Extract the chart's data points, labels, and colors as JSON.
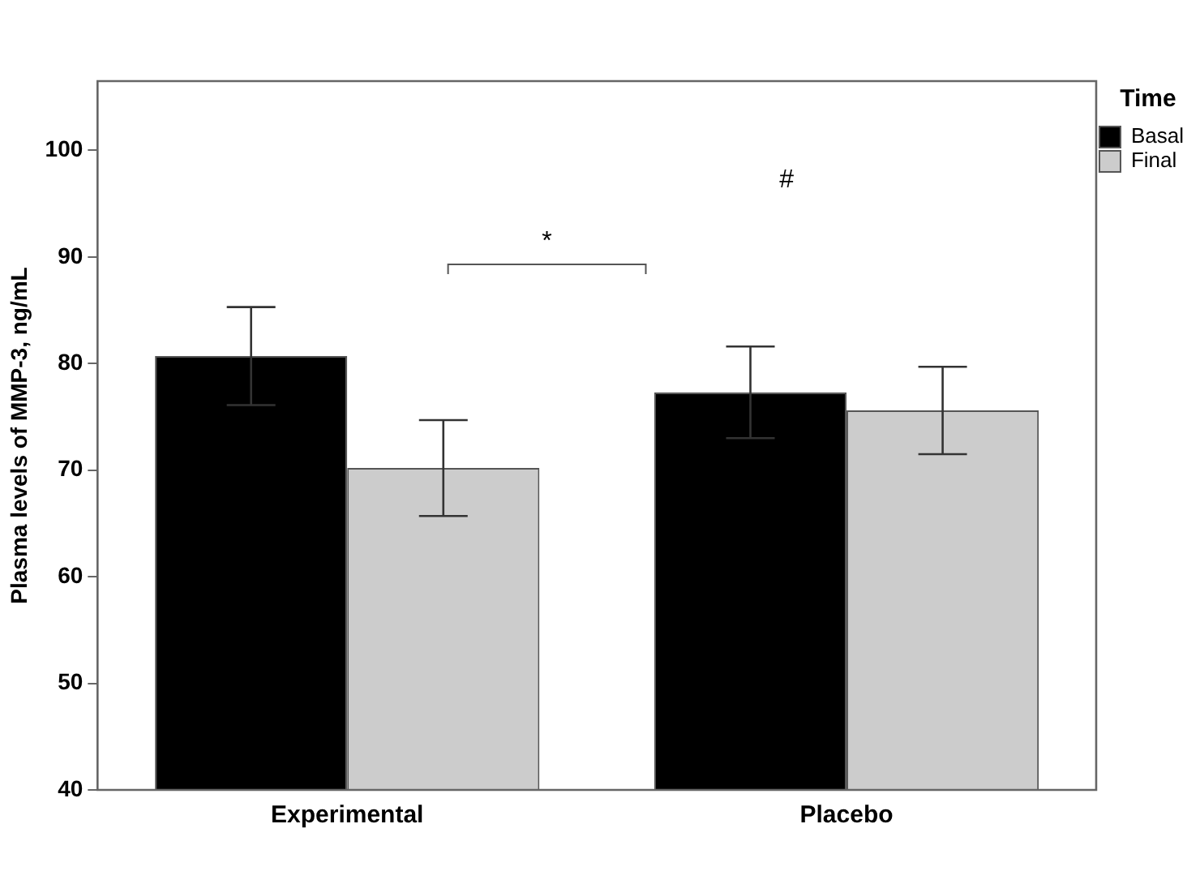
{
  "chart_data": {
    "type": "bar",
    "ylabel": "Plasma levels of MMP-3, ng/mL",
    "legend_title": "Time",
    "legend": "top right",
    "grid": false,
    "categories": [
      "Experimental",
      "Placebo"
    ],
    "series": [
      {
        "name": "Basal",
        "color": "#000000",
        "values": [
          80.7,
          77.3
        ],
        "errors": [
          4.6,
          4.3
        ]
      },
      {
        "name": "Final",
        "color": "#cccccc",
        "values": [
          70.2,
          75.6
        ],
        "errors": [
          4.5,
          4.1
        ]
      }
    ],
    "ylim": [
      40,
      106.5
    ],
    "yticks": [
      40,
      50,
      60,
      70,
      80,
      90,
      100
    ],
    "annotations": [
      "*",
      "#"
    ]
  }
}
